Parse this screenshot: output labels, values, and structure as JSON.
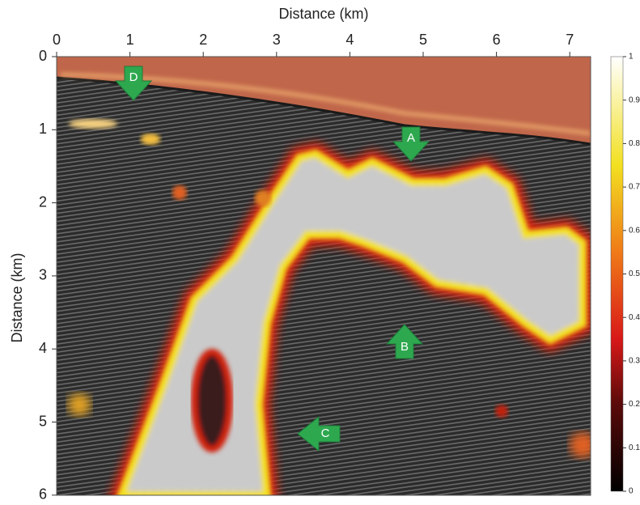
{
  "figure": {
    "x_axis": {
      "label": "Distance (km)",
      "ticks": [
        0,
        1,
        2,
        3,
        4,
        5,
        6,
        7
      ]
    },
    "y_axis": {
      "label": "Distance (km)",
      "ticks": [
        0,
        1,
        2,
        3,
        4,
        5,
        6
      ]
    },
    "colorbar": {
      "ticks": [
        {
          "value": 0,
          "label": "0"
        },
        {
          "value": 0.1,
          "label": "0.1"
        },
        {
          "value": 0.2,
          "label": "0.2"
        },
        {
          "value": 0.3,
          "label": "0.3"
        },
        {
          "value": 0.4,
          "label": "0.4"
        },
        {
          "value": 0.5,
          "label": "0.5"
        },
        {
          "value": 0.6,
          "label": "0.6"
        },
        {
          "value": 0.7,
          "label": "0.7"
        },
        {
          "value": 0.8,
          "label": "0.8"
        },
        {
          "value": 0.9,
          "label": "0.9"
        },
        {
          "value": 1,
          "label": "1"
        }
      ]
    },
    "annotations": [
      {
        "label": "D",
        "direction": "down"
      },
      {
        "label": "A",
        "direction": "down"
      },
      {
        "label": "B",
        "direction": "up"
      },
      {
        "label": "C",
        "direction": "left"
      }
    ]
  }
}
